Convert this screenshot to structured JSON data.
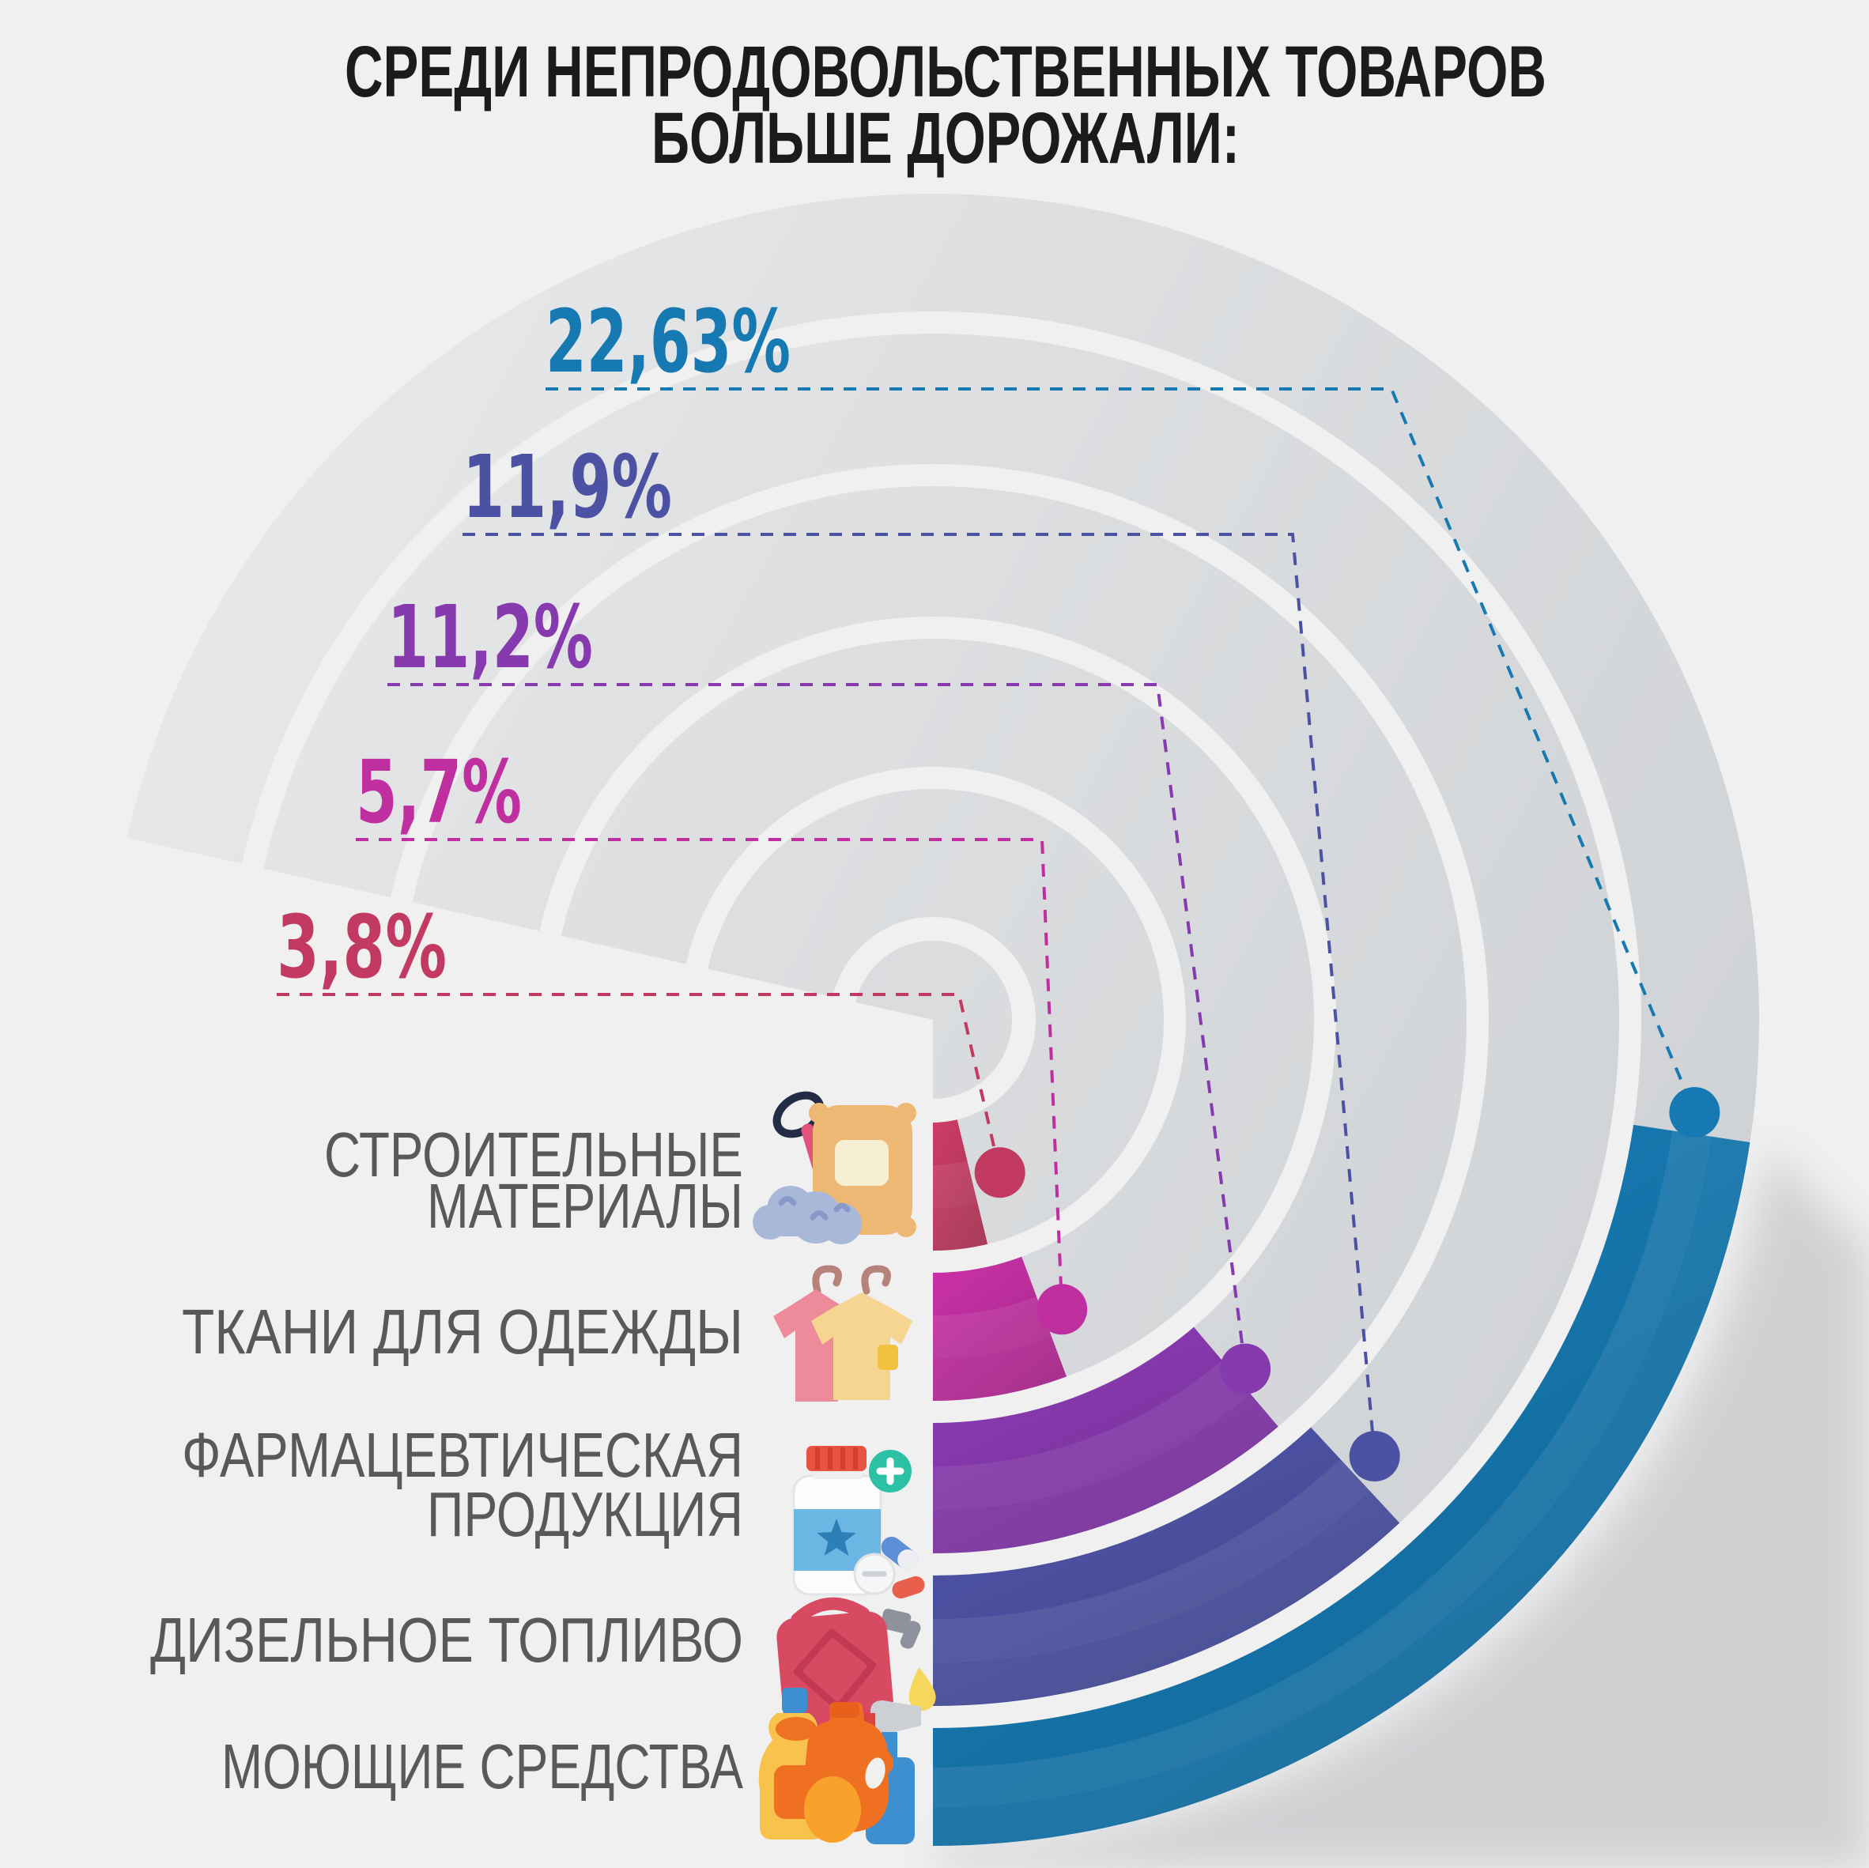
{
  "title": {
    "line1": "СРЕДИ НЕПРОДОВОЛЬСТВЕННЫХ ТОВАРОВ",
    "line2": "БОЛЬШЕ ДОРОЖАЛИ:"
  },
  "chart_data": {
    "type": "bar",
    "subtype": "radial-arc",
    "title": "СРЕДИ НЕПРОДОВОЛЬСТВЕННЫХ ТОВАРОВ БОЛЬШЕ ДОРОЖАЛИ:",
    "categories": [
      "СТРОИТЕЛЬНЫЕ МАТЕРИАЛЫ",
      "ТКАНИ ДЛЯ ОДЕЖДЫ",
      "ФАРМАЦЕВТИЧЕСКАЯ ПРОДУКЦИЯ",
      "ДИЗЕЛЬНОЕ ТОПЛИВО",
      "МОЮЩИЕ СРЕДСТВА"
    ],
    "values": [
      3.8,
      5.7,
      11.2,
      11.9,
      22.63
    ],
    "value_labels": [
      "3,8%",
      "5,7%",
      "11,2%",
      "11,9%",
      "22,63%"
    ],
    "colors": [
      "#c23a62",
      "#c02f9f",
      "#8739ae",
      "#4c52a3",
      "#1679b1"
    ],
    "unit": "%",
    "orientation": "arcs start pointing down and sweep toward upper right, arc length proportional to value",
    "legend_position": "left",
    "background_color": "#f0f0f1",
    "ring_color": "#d7d9db"
  },
  "items": [
    {
      "label_lines": [
        "СТРОИТЕЛЬНЫЕ",
        "МАТЕРИАЛЫ"
      ],
      "value": 3.8,
      "value_label": "3,8%",
      "color": "#c23a62",
      "icon": "cement-bag-icon"
    },
    {
      "label_lines": [
        "ТКАНИ ДЛЯ ОДЕЖДЫ"
      ],
      "value": 5.7,
      "value_label": "5,7%",
      "color": "#c02f9f",
      "icon": "clothes-hangers-icon"
    },
    {
      "label_lines": [
        "ФАРМАЦЕВТИЧЕСКАЯ",
        "ПРОДУКЦИЯ"
      ],
      "value": 11.2,
      "value_label": "11,2%",
      "color": "#8739ae",
      "icon": "medicine-bottle-icon"
    },
    {
      "label_lines": [
        "ДИЗЕЛЬНОЕ ТОПЛИВО"
      ],
      "value": 11.9,
      "value_label": "11,9%",
      "color": "#4c52a3",
      "icon": "fuel-canister-icon"
    },
    {
      "label_lines": [
        "МОЮЩИЕ СРЕДСТВА"
      ],
      "value": 22.63,
      "value_label": "22,63%",
      "color": "#1679b1",
      "icon": "detergents-icon"
    }
  ]
}
